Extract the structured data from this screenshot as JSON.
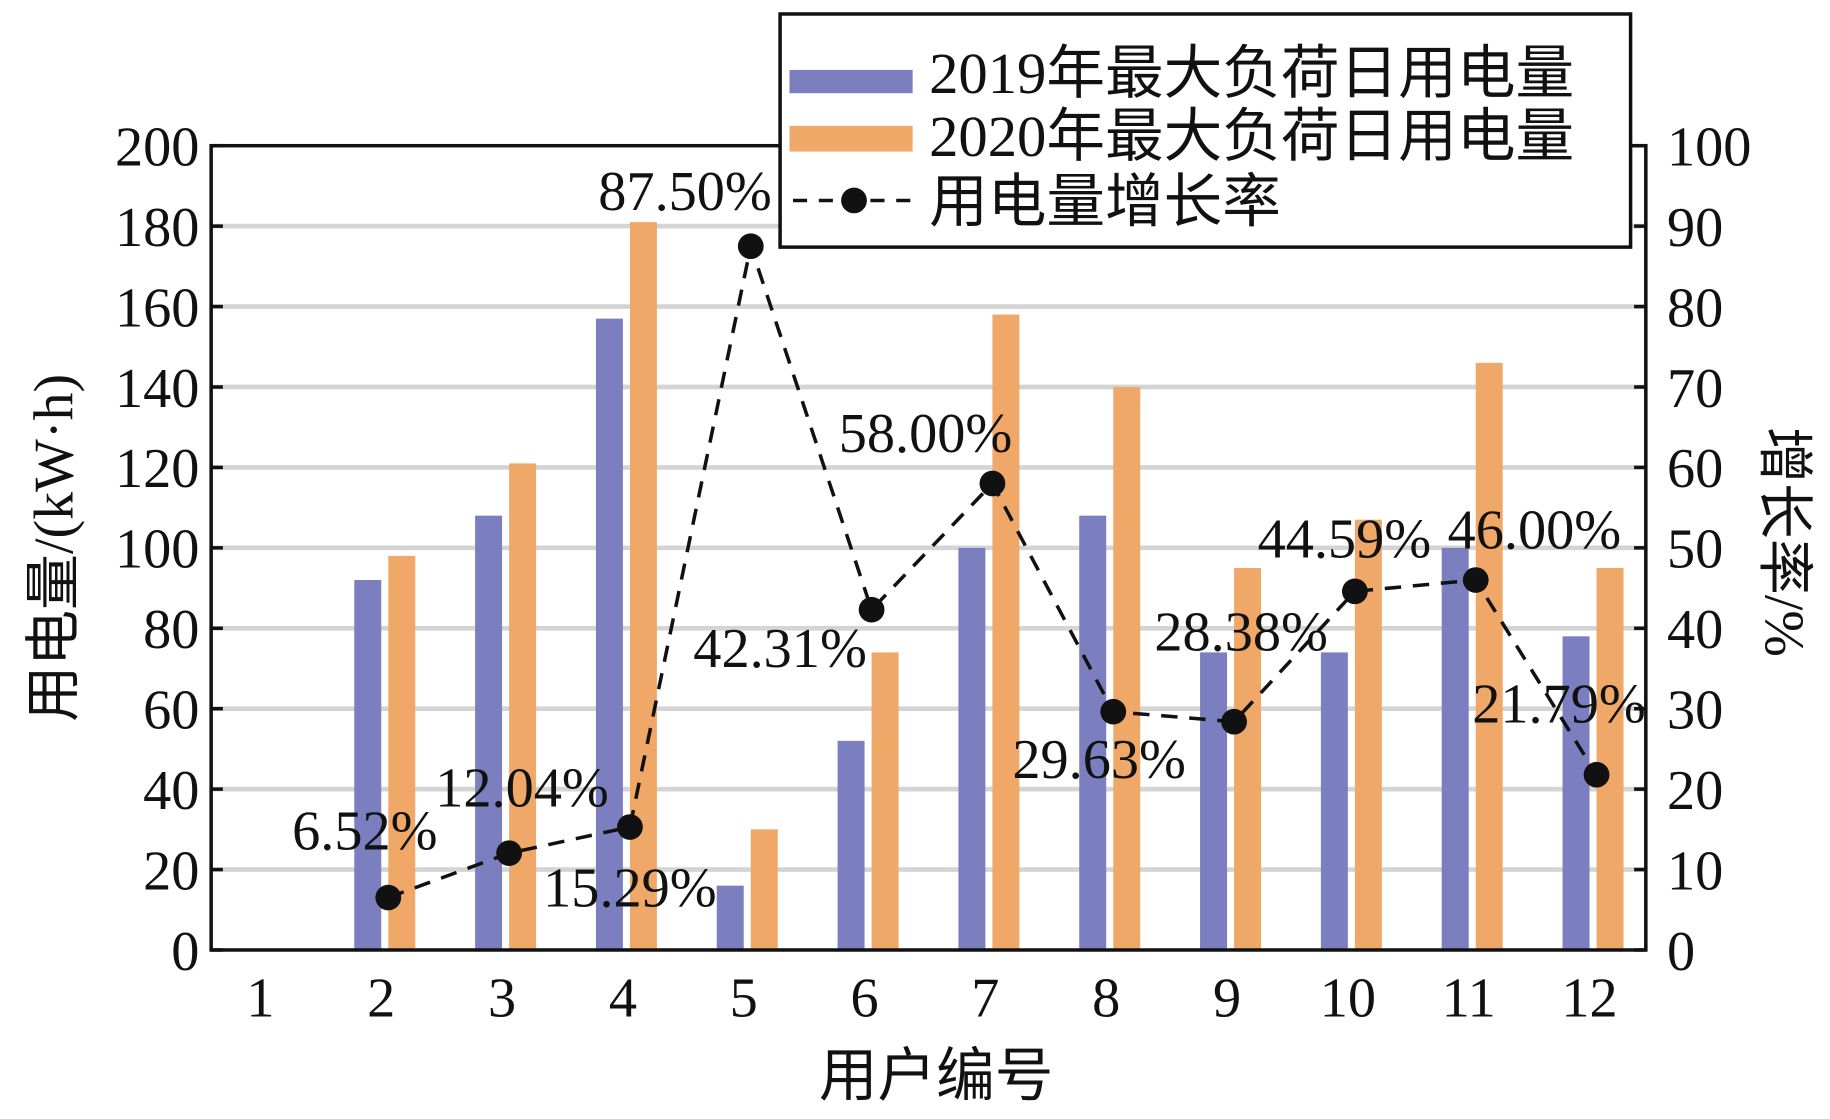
{
  "chart_data": {
    "type": "bar",
    "xlabel": "用户编号",
    "ylabel": "用电量/(kW·h)",
    "y2label": "增长率/%",
    "categories": [
      "1",
      "2",
      "3",
      "4",
      "5",
      "6",
      "7",
      "8",
      "9",
      "10",
      "11",
      "12"
    ],
    "ylim": [
      0,
      200
    ],
    "yticks": [
      "0",
      "20",
      "40",
      "60",
      "80",
      "100",
      "120",
      "140",
      "160",
      "180",
      "200"
    ],
    "y2lim": [
      0,
      100
    ],
    "y2ticks": [
      "0",
      "10",
      "20",
      "30",
      "40",
      "50",
      "60",
      "70",
      "80",
      "90",
      "100"
    ],
    "grid": "horizontal",
    "legend_position": "top-right",
    "series": [
      {
        "name": "2019年最大负荷日用电量",
        "type": "bar",
        "color": "#7b7fbf",
        "values": [
          0,
          92,
          108,
          157,
          16,
          52,
          100,
          108,
          74,
          74,
          100,
          78
        ]
      },
      {
        "name": "2020年最大负荷日用电量",
        "type": "bar",
        "color": "#f0a868",
        "values": [
          0,
          98,
          121,
          181,
          30,
          74,
          158,
          140,
          95,
          107,
          146,
          95
        ]
      },
      {
        "name": "用电量增长率",
        "type": "line",
        "axis": "right",
        "color": "#111111",
        "style": "dashed",
        "values": [
          null,
          6.52,
          12.04,
          15.29,
          87.5,
          42.31,
          58.0,
          29.63,
          28.38,
          44.59,
          46.0,
          21.79
        ],
        "labels": [
          null,
          "6.52%",
          "12.04%",
          "15.29%",
          "87.50%",
          "42.31%",
          "58.00%",
          "29.63%",
          "28.38%",
          "44.59%",
          "46.00%",
          "21.79%"
        ]
      }
    ]
  }
}
